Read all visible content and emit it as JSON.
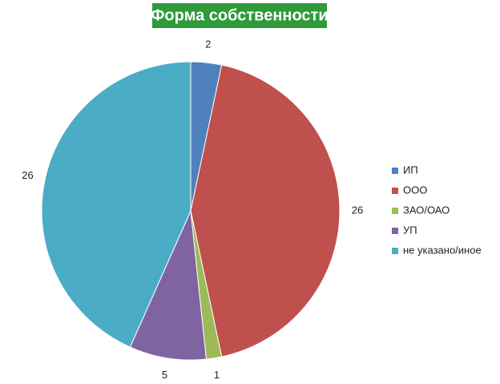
{
  "chart_data": {
    "type": "pie",
    "title": "Форма собственности",
    "categories": [
      "ИП",
      "ООО",
      "ЗАО/ОАО",
      "УП",
      "не указано/иное"
    ],
    "values": [
      2,
      26,
      1,
      5,
      26
    ],
    "colors": [
      "#4f81bd",
      "#c0504d",
      "#9bbb59",
      "#8064a2",
      "#4bacc6"
    ],
    "legend": "right"
  }
}
